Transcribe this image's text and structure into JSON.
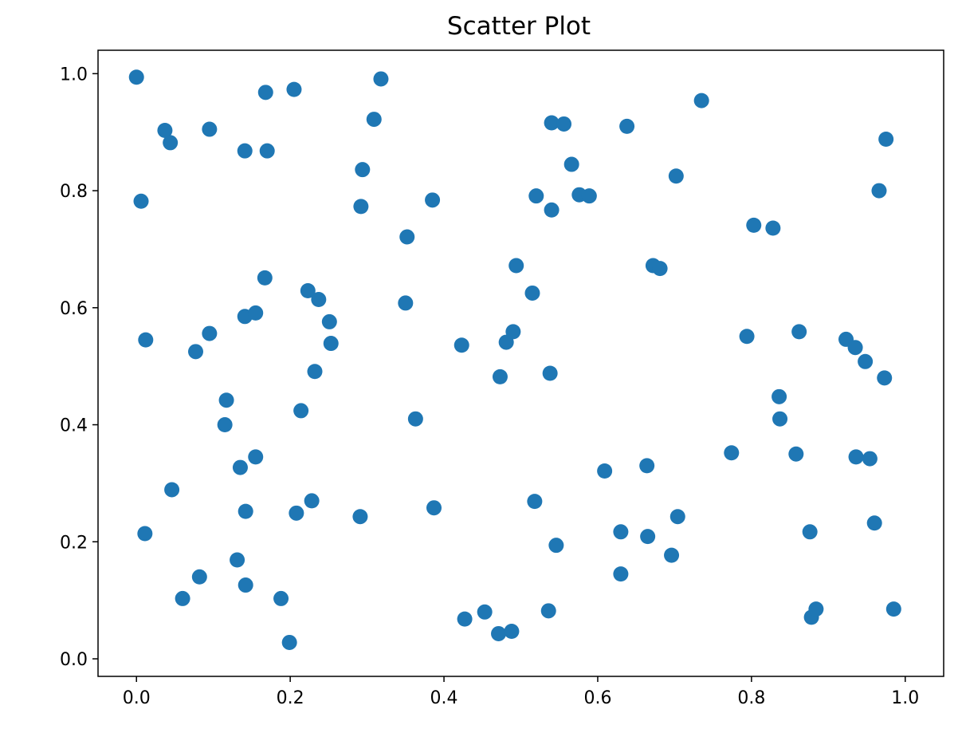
{
  "chart_data": {
    "type": "scatter",
    "title": "Scatter Plot",
    "xlabel": "",
    "ylabel": "",
    "xlim": [
      -0.05,
      1.05
    ],
    "ylim": [
      -0.03,
      1.04
    ],
    "xticks": [
      0.0,
      0.2,
      0.4,
      0.6,
      0.8,
      1.0
    ],
    "xtick_labels": [
      "0.0",
      "0.2",
      "0.4",
      "0.6",
      "0.8",
      "1.0"
    ],
    "yticks": [
      0.0,
      0.2,
      0.4,
      0.6,
      0.8,
      1.0
    ],
    "ytick_labels": [
      "0.0",
      "0.2",
      "0.4",
      "0.6",
      "0.8",
      "1.0"
    ],
    "grid": false,
    "marker_color": "#1f77b4",
    "points": [
      {
        "x": 0.0,
        "y": 0.994
      },
      {
        "x": 0.006,
        "y": 0.782
      },
      {
        "x": 0.012,
        "y": 0.545
      },
      {
        "x": 0.011,
        "y": 0.214
      },
      {
        "x": 0.037,
        "y": 0.903
      },
      {
        "x": 0.044,
        "y": 0.882
      },
      {
        "x": 0.046,
        "y": 0.289
      },
      {
        "x": 0.06,
        "y": 0.103
      },
      {
        "x": 0.077,
        "y": 0.525
      },
      {
        "x": 0.082,
        "y": 0.14
      },
      {
        "x": 0.095,
        "y": 0.905
      },
      {
        "x": 0.095,
        "y": 0.556
      },
      {
        "x": 0.115,
        "y": 0.4
      },
      {
        "x": 0.117,
        "y": 0.442
      },
      {
        "x": 0.131,
        "y": 0.169
      },
      {
        "x": 0.135,
        "y": 0.327
      },
      {
        "x": 0.141,
        "y": 0.868
      },
      {
        "x": 0.141,
        "y": 0.585
      },
      {
        "x": 0.142,
        "y": 0.252
      },
      {
        "x": 0.142,
        "y": 0.126
      },
      {
        "x": 0.155,
        "y": 0.591
      },
      {
        "x": 0.155,
        "y": 0.345
      },
      {
        "x": 0.167,
        "y": 0.651
      },
      {
        "x": 0.168,
        "y": 0.968
      },
      {
        "x": 0.17,
        "y": 0.868
      },
      {
        "x": 0.188,
        "y": 0.103
      },
      {
        "x": 0.199,
        "y": 0.028
      },
      {
        "x": 0.205,
        "y": 0.973
      },
      {
        "x": 0.208,
        "y": 0.249
      },
      {
        "x": 0.214,
        "y": 0.424
      },
      {
        "x": 0.223,
        "y": 0.629
      },
      {
        "x": 0.228,
        "y": 0.27
      },
      {
        "x": 0.232,
        "y": 0.491
      },
      {
        "x": 0.237,
        "y": 0.614
      },
      {
        "x": 0.251,
        "y": 0.576
      },
      {
        "x": 0.253,
        "y": 0.539
      },
      {
        "x": 0.291,
        "y": 0.243
      },
      {
        "x": 0.292,
        "y": 0.773
      },
      {
        "x": 0.294,
        "y": 0.836
      },
      {
        "x": 0.309,
        "y": 0.922
      },
      {
        "x": 0.318,
        "y": 0.991
      },
      {
        "x": 0.35,
        "y": 0.608
      },
      {
        "x": 0.352,
        "y": 0.721
      },
      {
        "x": 0.363,
        "y": 0.41
      },
      {
        "x": 0.385,
        "y": 0.784
      },
      {
        "x": 0.387,
        "y": 0.258
      },
      {
        "x": 0.423,
        "y": 0.536
      },
      {
        "x": 0.427,
        "y": 0.068
      },
      {
        "x": 0.453,
        "y": 0.08
      },
      {
        "x": 0.471,
        "y": 0.043
      },
      {
        "x": 0.473,
        "y": 0.482
      },
      {
        "x": 0.481,
        "y": 0.541
      },
      {
        "x": 0.488,
        "y": 0.047
      },
      {
        "x": 0.49,
        "y": 0.559
      },
      {
        "x": 0.494,
        "y": 0.672
      },
      {
        "x": 0.515,
        "y": 0.625
      },
      {
        "x": 0.518,
        "y": 0.269
      },
      {
        "x": 0.52,
        "y": 0.791
      },
      {
        "x": 0.536,
        "y": 0.082
      },
      {
        "x": 0.538,
        "y": 0.488
      },
      {
        "x": 0.54,
        "y": 0.916
      },
      {
        "x": 0.54,
        "y": 0.767
      },
      {
        "x": 0.546,
        "y": 0.194
      },
      {
        "x": 0.556,
        "y": 0.914
      },
      {
        "x": 0.566,
        "y": 0.845
      },
      {
        "x": 0.576,
        "y": 0.793
      },
      {
        "x": 0.589,
        "y": 0.791
      },
      {
        "x": 0.609,
        "y": 0.321
      },
      {
        "x": 0.63,
        "y": 0.145
      },
      {
        "x": 0.63,
        "y": 0.217
      },
      {
        "x": 0.638,
        "y": 0.91
      },
      {
        "x": 0.664,
        "y": 0.33
      },
      {
        "x": 0.665,
        "y": 0.209
      },
      {
        "x": 0.672,
        "y": 0.672
      },
      {
        "x": 0.681,
        "y": 0.667
      },
      {
        "x": 0.696,
        "y": 0.177
      },
      {
        "x": 0.702,
        "y": 0.825
      },
      {
        "x": 0.704,
        "y": 0.243
      },
      {
        "x": 0.735,
        "y": 0.954
      },
      {
        "x": 0.774,
        "y": 0.352
      },
      {
        "x": 0.794,
        "y": 0.551
      },
      {
        "x": 0.803,
        "y": 0.741
      },
      {
        "x": 0.828,
        "y": 0.736
      },
      {
        "x": 0.836,
        "y": 0.448
      },
      {
        "x": 0.837,
        "y": 0.41
      },
      {
        "x": 0.858,
        "y": 0.35
      },
      {
        "x": 0.862,
        "y": 0.559
      },
      {
        "x": 0.876,
        "y": 0.217
      },
      {
        "x": 0.878,
        "y": 0.071
      },
      {
        "x": 0.884,
        "y": 0.085
      },
      {
        "x": 0.923,
        "y": 0.546
      },
      {
        "x": 0.935,
        "y": 0.532
      },
      {
        "x": 0.936,
        "y": 0.345
      },
      {
        "x": 0.948,
        "y": 0.508
      },
      {
        "x": 0.954,
        "y": 0.342
      },
      {
        "x": 0.96,
        "y": 0.232
      },
      {
        "x": 0.966,
        "y": 0.8
      },
      {
        "x": 0.973,
        "y": 0.48
      },
      {
        "x": 0.975,
        "y": 0.888
      },
      {
        "x": 0.985,
        "y": 0.085
      }
    ]
  }
}
